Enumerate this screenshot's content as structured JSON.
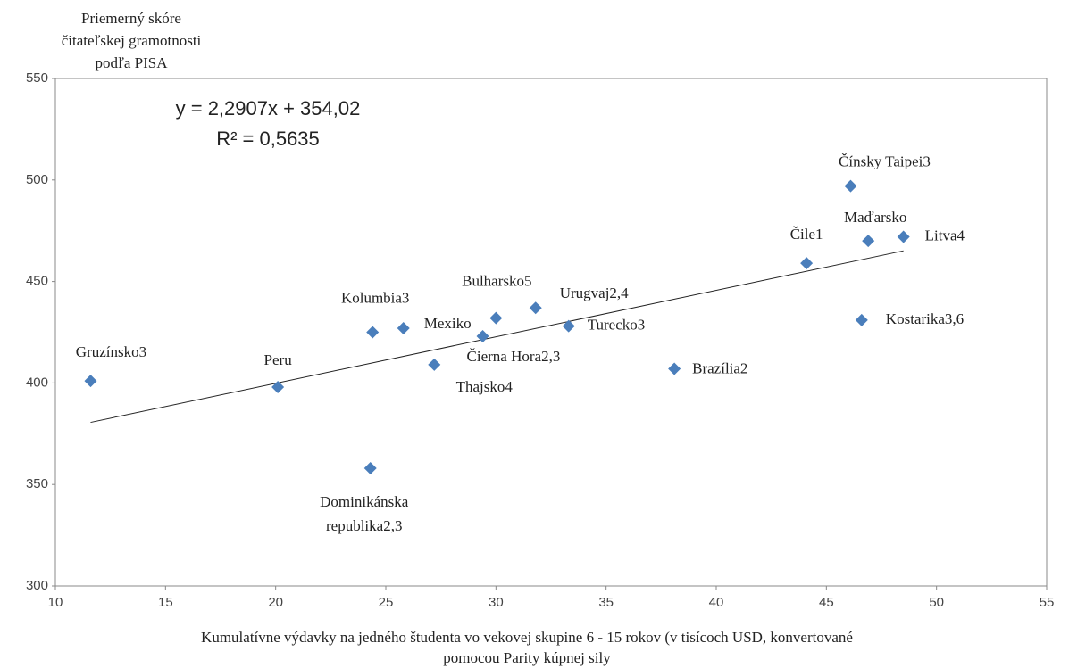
{
  "chart_data": {
    "type": "scatter",
    "y_label": [
      "Priemerný skóre",
      "čitateľskej gramotnosti",
      "podľa PISA"
    ],
    "x_label": [
      "Kumulatívne výdavky na jedného študenta vo vekovej skupine 6 - 15 rokov (v tisícoch USD, konvertované",
      "pomocou Parity kúpnej sily"
    ],
    "labels": [
      "Gruzínsko3",
      "Peru",
      "Dominikánska republika2,3",
      "Kolumbia3",
      "Mexiko",
      "Thajsko4",
      "Čierna Hora2,3",
      "Bulharsko5",
      "Urugvaj2,4",
      "Turecko3",
      "Brazília2",
      "Čile1",
      "Čínsky Taipei3",
      "Maďarsko",
      "Litva4",
      "Kostarika3,6"
    ],
    "x": [
      11.6,
      20.1,
      24.3,
      24.4,
      25.8,
      27.2,
      29.4,
      30.0,
      31.8,
      33.3,
      38.1,
      44.1,
      46.1,
      46.9,
      48.5,
      46.6
    ],
    "y": [
      401,
      398,
      358,
      425,
      427,
      409,
      423,
      432,
      437,
      428,
      407,
      459,
      497,
      470,
      472,
      431
    ],
    "color": "#4a7ebb",
    "trendline": {
      "equation": "y = 2,2907x + 354,02",
      "r2": "R² = 0,5635",
      "slope": 2.2907,
      "intercept": 354.02
    },
    "xlim": [
      10,
      55
    ],
    "xticks": [
      10,
      15,
      20,
      25,
      30,
      35,
      40,
      45,
      50,
      55
    ],
    "ylim": [
      300,
      550
    ],
    "yticks": [
      300,
      350,
      400,
      450,
      500,
      550
    ],
    "grid": false
  }
}
